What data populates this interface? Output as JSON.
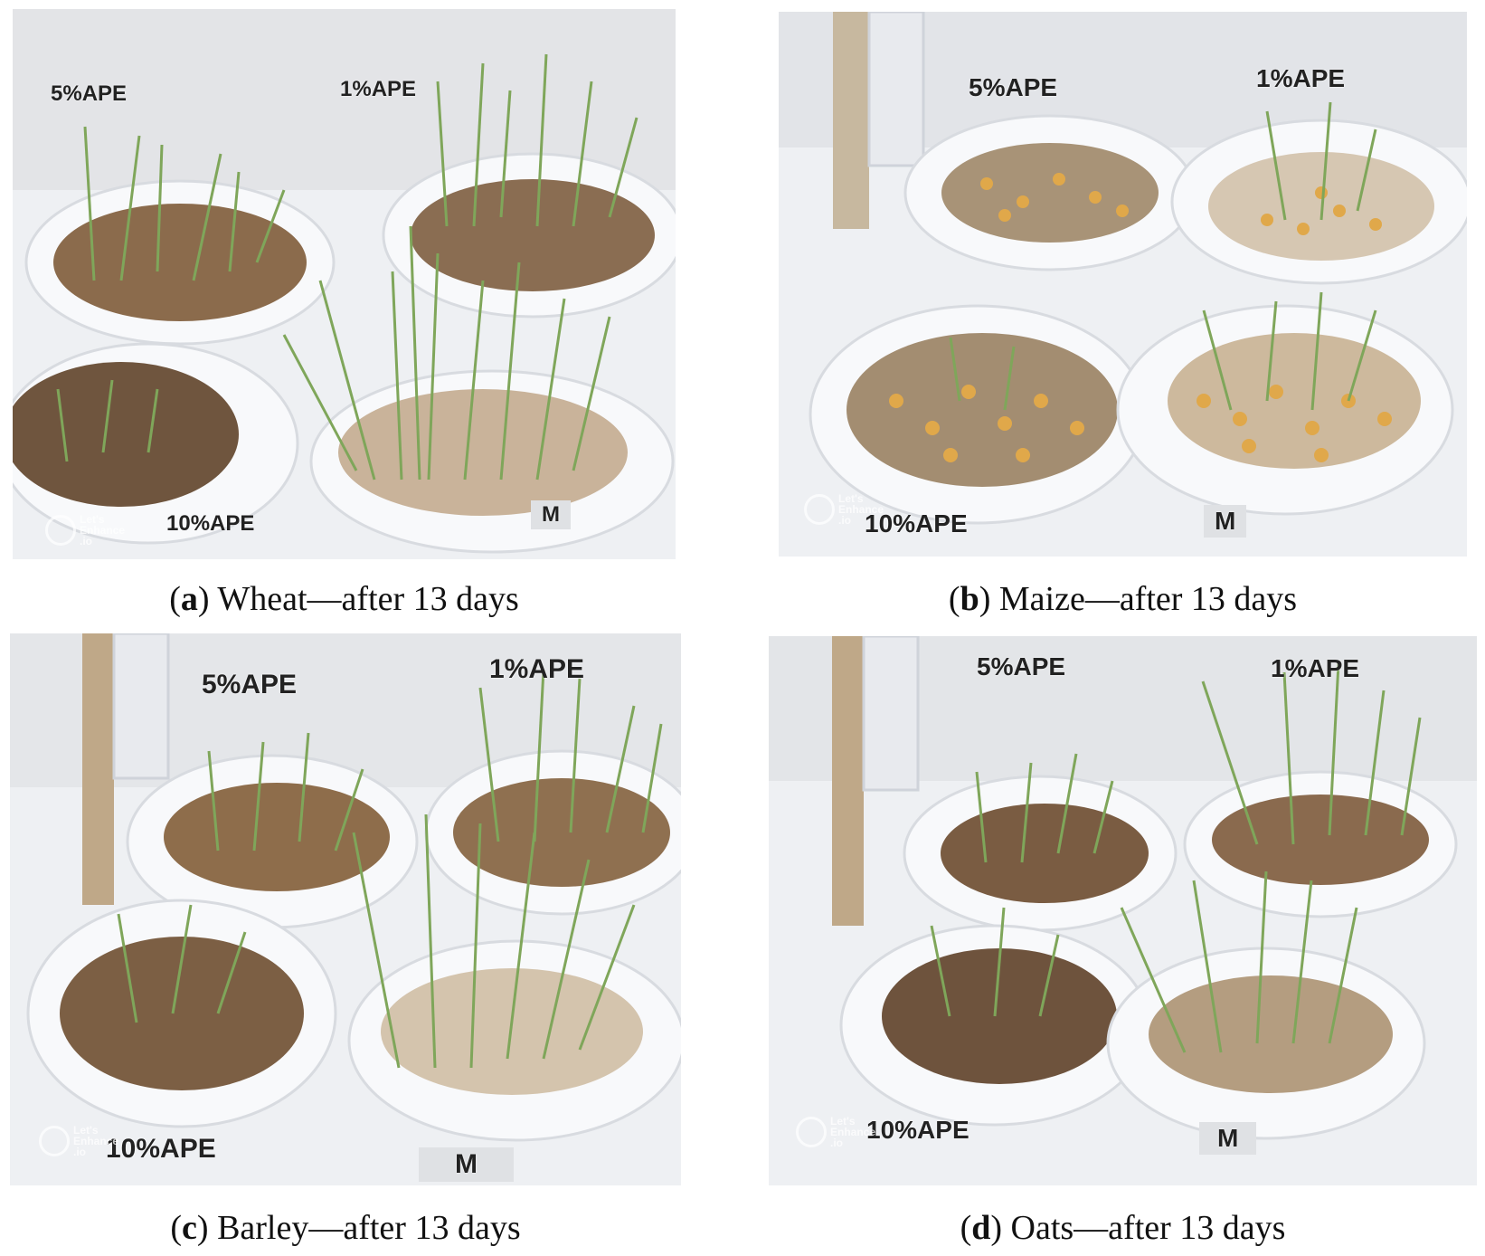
{
  "panels": [
    {
      "caption": {
        "letter": "a",
        "text": "Wheat—after 13 days"
      },
      "labels": {
        "five": "5%APE",
        "one": "1%APE",
        "ten": "10%APE",
        "m": "M"
      },
      "watermark": {
        "line1": "Let's",
        "line2": "Enhance",
        "line3": ".io"
      }
    },
    {
      "caption": {
        "letter": "b",
        "text": "Maize—after 13 days"
      },
      "labels": {
        "five": "5%APE",
        "one": "1%APE",
        "ten": "10%APE",
        "m": "M"
      },
      "watermark": {
        "line1": "Let's",
        "line2": "Enhance",
        "line3": ".io"
      }
    },
    {
      "caption": {
        "letter": "c",
        "text": "Barley—after 13 days"
      },
      "labels": {
        "five": "5%APE",
        "one": "1%APE",
        "ten": "10%APE",
        "m": "M"
      },
      "watermark": {
        "line1": "Let's",
        "line2": "Enhance",
        "line3": ".io"
      }
    },
    {
      "caption": {
        "letter": "d",
        "text": "Oats—after 13 days"
      },
      "labels": {
        "five": "5%APE",
        "one": "1%APE",
        "ten": "10%APE",
        "m": "M"
      },
      "watermark": {
        "line1": "Let's",
        "line2": "Enhance",
        "line3": ".io"
      }
    }
  ],
  "colors": {
    "sprout_green": "#7fa65a",
    "soil_brown": "#8a6a4a",
    "dish_white": "#f7f8fa",
    "maize_yellow": "#e0a84a"
  }
}
